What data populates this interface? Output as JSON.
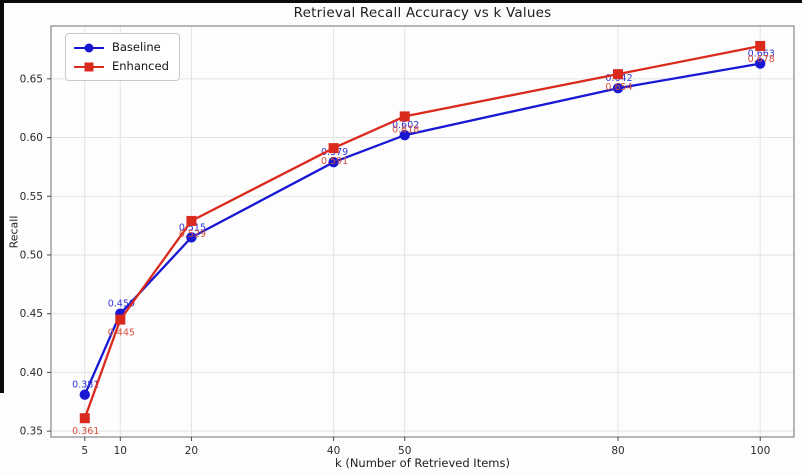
{
  "figure": {
    "background": "#fdfdfd",
    "frame_color": "#0b0b0b"
  },
  "chart_data": {
    "type": "line",
    "title": "Retrieval Recall Accuracy vs k Values",
    "xlabel": "k (Number of Retrieved Items)",
    "ylabel": "Recall",
    "x": [
      5,
      10,
      20,
      40,
      50,
      80,
      100
    ],
    "series": [
      {
        "name": "Baseline",
        "color": "#1717d4",
        "label_color": "#3434d9",
        "marker": "circle",
        "values": [
          0.381,
          0.45,
          0.515,
          0.579,
          0.602,
          0.642,
          0.663
        ],
        "point_labels": [
          "0.381",
          "0.450",
          "0.515",
          "0.579",
          "0.602",
          "0.642",
          "0.663"
        ],
        "label_side": "above"
      },
      {
        "name": "Enhanced",
        "color": "#da2a1d",
        "label_color": "#d8503c",
        "marker": "square",
        "values": [
          0.361,
          0.445,
          0.529,
          0.591,
          0.618,
          0.654,
          0.678
        ],
        "point_labels": [
          "0.361",
          "0.445",
          "0.529",
          "0.591",
          "0.618",
          "0.654",
          "0.678"
        ],
        "label_side": "below"
      }
    ],
    "xticks": [
      5,
      10,
      20,
      40,
      50,
      80,
      100
    ],
    "xtick_labels": [
      "5",
      "10",
      "20",
      "40",
      "50",
      "80",
      "100"
    ],
    "yticks": [
      0.35,
      0.4,
      0.45,
      0.5,
      0.55,
      0.6,
      0.65
    ],
    "ytick_labels": [
      "0.35",
      "0.40",
      "0.45",
      "0.50",
      "0.55",
      "0.60",
      "0.65"
    ],
    "xlim": [
      0.25,
      104.75
    ],
    "ylim": [
      0.345,
      0.695
    ],
    "grid": true,
    "grid_color": "#e3e3e3",
    "spine_color": "#7d7d7d",
    "tick_color": "#4a4a4a",
    "legend_position": "upper-left"
  }
}
